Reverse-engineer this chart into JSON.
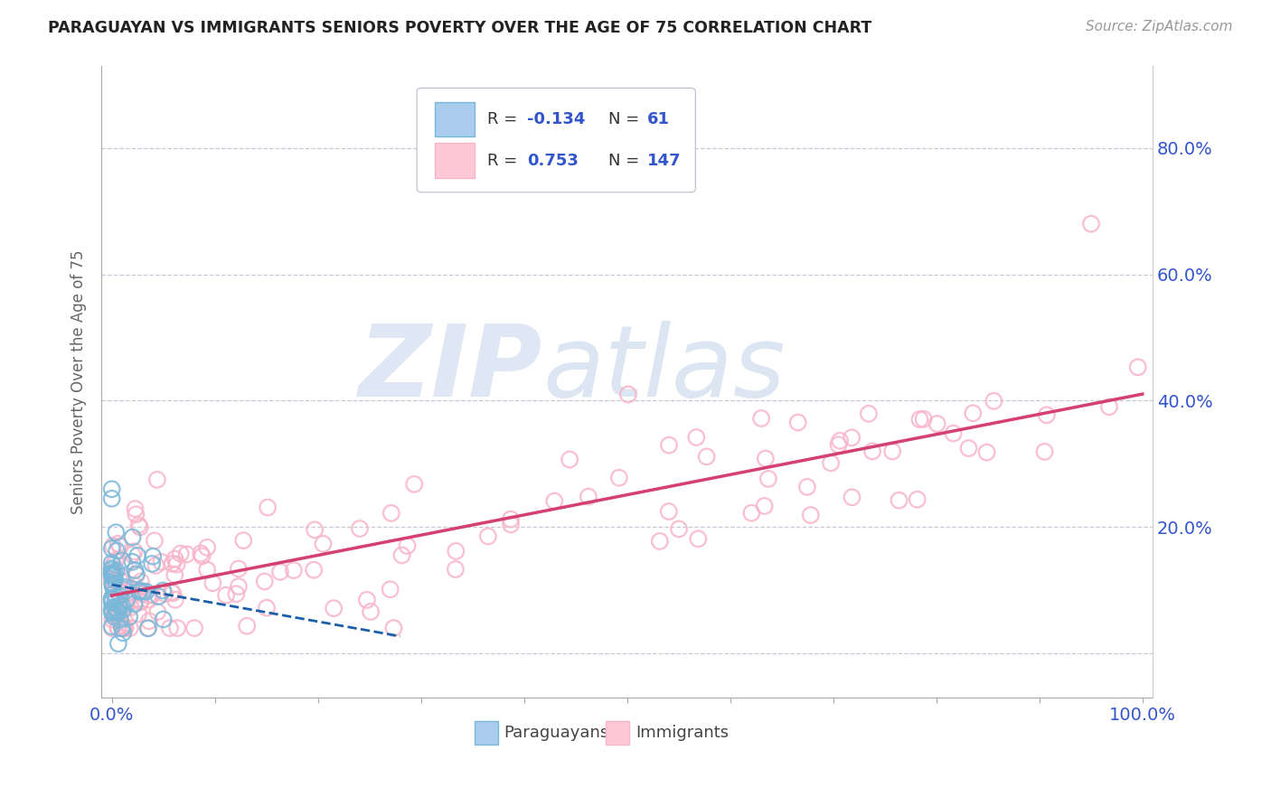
{
  "title": "PARAGUAYAN VS IMMIGRANTS SENIORS POVERTY OVER THE AGE OF 75 CORRELATION CHART",
  "source": "Source: ZipAtlas.com",
  "ylabel": "Seniors Poverty Over the Age of 75",
  "xlim": [
    -0.01,
    1.01
  ],
  "ylim": [
    -0.07,
    0.93
  ],
  "xtick_positions": [
    0.0,
    0.1,
    0.2,
    0.3,
    0.4,
    0.5,
    0.6,
    0.7,
    0.8,
    0.9,
    1.0
  ],
  "xtick_labels": [
    "0.0%",
    "",
    "",
    "",
    "",
    "",
    "",
    "",
    "",
    "",
    "100.0%"
  ],
  "ytick_positions": [
    0.0,
    0.2,
    0.4,
    0.6,
    0.8
  ],
  "ytick_labels_right": [
    "",
    "20.0%",
    "40.0%",
    "60.0%",
    "80.0%"
  ],
  "paraguayan_color": "#7ab8d9",
  "paraguayan_edge_color": "#5a9fc0",
  "immigrant_color": "#f8b4c8",
  "immigrant_edge_color": "#e87090",
  "paraguayan_line_color": "#1a5fa8",
  "immigrant_line_color": "#d44070",
  "grid_color": "#c8c8d8",
  "title_color": "#222222",
  "source_color": "#999999",
  "axis_label_color": "#666666",
  "tick_color": "#3355cc",
  "legend_r1_val": "-0.134",
  "legend_n1_val": "61",
  "legend_r2_val": "0.753",
  "legend_n2_val": "147",
  "par_seed": 77,
  "imm_seed": 99
}
